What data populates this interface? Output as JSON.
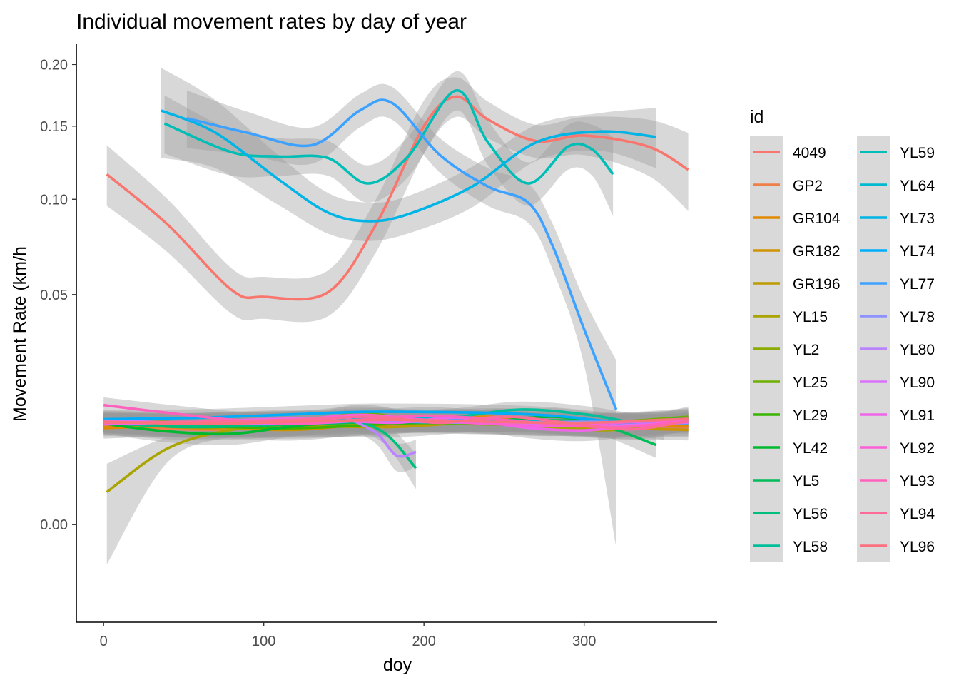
{
  "chart_data": {
    "type": "line",
    "title": "Individual movement rates by day of year",
    "xlabel": "doy",
    "ylabel": "Movement Rate (km/h",
    "xlim": [
      -17,
      383
    ],
    "ylim": [
      -0.009,
      0.218
    ],
    "y_scale": "sqrt",
    "xticks": [
      0,
      100,
      200,
      300
    ],
    "xtick_labels": [
      "0",
      "100",
      "200",
      "300"
    ],
    "yticks": [
      0.0,
      0.05,
      0.1,
      0.15,
      0.2
    ],
    "ytick_labels": [
      "0.00",
      "0.05",
      "0.10",
      "0.15",
      "0.20"
    ],
    "grid": false,
    "legend": {
      "title": "id",
      "position": "right",
      "columns": 2
    },
    "confidence_band": true,
    "series": [
      {
        "name": "4049",
        "color": "#F8766D",
        "x": [
          2,
          40,
          80,
          100,
          140,
          170,
          200,
          220,
          240,
          270,
          300,
          340,
          365
        ],
        "y": [
          0.116,
          0.085,
          0.052,
          0.049,
          0.051,
          0.085,
          0.15,
          0.173,
          0.155,
          0.139,
          0.143,
          0.135,
          0.119
        ],
        "band": [
          0.02,
          0.015,
          0.01,
          0.009,
          0.01,
          0.015,
          0.02,
          0.016,
          0.014,
          0.012,
          0.014,
          0.02,
          0.026
        ]
      },
      {
        "name": "GP2",
        "color": "#EF7F49",
        "x": [
          0,
          60,
          120,
          180,
          240,
          300,
          365
        ],
        "y": [
          0.0095,
          0.0085,
          0.0092,
          0.0098,
          0.0102,
          0.0095,
          0.009
        ]
      },
      {
        "name": "GR104",
        "color": "#E18A00",
        "x": [
          0,
          60,
          120,
          180,
          240,
          300,
          365
        ],
        "y": [
          0.0088,
          0.0093,
          0.009,
          0.0095,
          0.011,
          0.0093,
          0.0092
        ]
      },
      {
        "name": "GR182",
        "color": "#CF9400",
        "x": [
          0,
          60,
          120,
          180,
          240,
          300,
          365
        ],
        "y": [
          0.0092,
          0.009,
          0.0085,
          0.01,
          0.0105,
          0.009,
          0.0085
        ]
      },
      {
        "name": "GR196",
        "color": "#BE9C00",
        "x": [
          0,
          60,
          120,
          180,
          240,
          300,
          350
        ],
        "y": [
          0.0098,
          0.0088,
          0.0092,
          0.009,
          0.01,
          0.01,
          0.0086
        ]
      },
      {
        "name": "YL15",
        "color": "#A9A400",
        "x": [
          2,
          40,
          80,
          120,
          160,
          200,
          240,
          280,
          320,
          365
        ],
        "y": [
          0.001,
          0.0055,
          0.0085,
          0.0095,
          0.01,
          0.0102,
          0.0098,
          0.009,
          0.0085,
          0.011
        ],
        "band": [
          0.0025,
          0.0018,
          0.0012,
          0.001,
          0.001,
          0.001,
          0.001,
          0.0011,
          0.0014,
          0.0022
        ]
      },
      {
        "name": "YL2",
        "color": "#8CAB00",
        "x": [
          0,
          60,
          120,
          180,
          240,
          300,
          365
        ],
        "y": [
          0.01,
          0.009,
          0.0093,
          0.0097,
          0.0095,
          0.0092,
          0.01
        ]
      },
      {
        "name": "YL25",
        "color": "#6DB000",
        "x": [
          0,
          60,
          120,
          160,
          200,
          260,
          320,
          365
        ],
        "y": [
          0.0105,
          0.0098,
          0.0095,
          0.0118,
          0.01,
          0.0095,
          0.01,
          0.011
        ]
      },
      {
        "name": "YL29",
        "color": "#39B600",
        "x": [
          0,
          60,
          120,
          180,
          240,
          300,
          365
        ],
        "y": [
          0.0098,
          0.0092,
          0.0088,
          0.0096,
          0.0102,
          0.0094,
          0.0099
        ]
      },
      {
        "name": "YL42",
        "color": "#00B931",
        "x": [
          0,
          40,
          80,
          120,
          160,
          200,
          240,
          280,
          320,
          365
        ],
        "y": [
          0.0096,
          0.0082,
          0.0078,
          0.0092,
          0.01,
          0.0098,
          0.01,
          0.011,
          0.0098,
          0.0108
        ]
      },
      {
        "name": "YL5",
        "color": "#00BC59",
        "x": [
          0,
          60,
          120,
          180,
          240,
          300,
          345
        ],
        "y": [
          0.0098,
          0.009,
          0.0095,
          0.01,
          0.0098,
          0.01,
          0.006
        ]
      },
      {
        "name": "YL56",
        "color": "#00BE7C",
        "x": [
          0,
          50,
          100,
          150,
          175,
          195
        ],
        "y": [
          0.0098,
          0.009,
          0.0094,
          0.0102,
          0.008,
          0.003
        ]
      },
      {
        "name": "YL58",
        "color": "#00BF9A",
        "x": [
          0,
          60,
          120,
          180,
          220,
          260,
          300,
          340,
          365
        ],
        "y": [
          0.0098,
          0.0095,
          0.01,
          0.0105,
          0.011,
          0.0125,
          0.0115,
          0.0095,
          0.01
        ]
      },
      {
        "name": "YL59",
        "color": "#00BEB6",
        "x": [
          38,
          80,
          110,
          140,
          165,
          190,
          220,
          240,
          265,
          290,
          305,
          318
        ],
        "y": [
          0.152,
          0.131,
          0.128,
          0.127,
          0.11,
          0.128,
          0.178,
          0.138,
          0.11,
          0.135,
          0.133,
          0.116
        ],
        "band": [
          0.022,
          0.016,
          0.013,
          0.012,
          0.012,
          0.014,
          0.016,
          0.016,
          0.014,
          0.016,
          0.018,
          0.026
        ]
      },
      {
        "name": "YL64",
        "color": "#00BBCF",
        "x": [
          0,
          60,
          120,
          180,
          240,
          300,
          365
        ],
        "y": [
          0.01,
          0.0098,
          0.0102,
          0.0108,
          0.0104,
          0.0098,
          0.0096
        ]
      },
      {
        "name": "YL73",
        "color": "#00B5E6",
        "x": [
          36,
          70,
          110,
          140,
          165,
          190,
          230,
          270,
          310,
          345
        ],
        "y": [
          0.162,
          0.145,
          0.112,
          0.092,
          0.087,
          0.091,
          0.108,
          0.138,
          0.146,
          0.142
        ],
        "band": [
          0.035,
          0.025,
          0.016,
          0.012,
          0.011,
          0.011,
          0.013,
          0.013,
          0.014,
          0.022
        ]
      },
      {
        "name": "YL74",
        "color": "#00ADFA",
        "x": [
          0,
          60,
          120,
          160,
          200,
          240,
          280,
          320,
          350
        ],
        "y": [
          0.0105,
          0.0108,
          0.0115,
          0.012,
          0.012,
          0.0118,
          0.0112,
          0.01,
          0.0098
        ]
      },
      {
        "name": "YL77",
        "color": "#3DA1FF",
        "x": [
          52,
          90,
          130,
          160,
          180,
          210,
          240,
          265,
          280,
          300,
          320
        ],
        "y": [
          0.156,
          0.145,
          0.136,
          0.162,
          0.168,
          0.129,
          0.108,
          0.098,
          0.074,
          0.036,
          0.0125
        ],
        "band": [
          0.022,
          0.016,
          0.013,
          0.013,
          0.013,
          0.012,
          0.012,
          0.012,
          0.012,
          0.012,
          0.013
        ]
      },
      {
        "name": "YL78",
        "color": "#8E92FF",
        "x": [
          0,
          60,
          120,
          180,
          240,
          300,
          365
        ],
        "y": [
          0.0098,
          0.01,
          0.0104,
          0.01,
          0.0098,
          0.01,
          0.0098
        ]
      },
      {
        "name": "YL80",
        "color": "#BB84FF",
        "x": [
          150,
          170,
          183,
          195
        ],
        "y": [
          0.011,
          0.008,
          0.0045,
          0.005
        ]
      },
      {
        "name": "YL90",
        "color": "#DB72FB",
        "x": [
          0,
          60,
          120,
          180,
          240,
          300,
          365
        ],
        "y": [
          0.0102,
          0.0098,
          0.0096,
          0.0104,
          0.01,
          0.0092,
          0.0098
        ]
      },
      {
        "name": "YL91",
        "color": "#F066EA",
        "x": [
          0,
          60,
          120,
          180,
          220,
          260,
          300,
          340,
          365
        ],
        "y": [
          0.0095,
          0.01,
          0.0106,
          0.0098,
          0.0108,
          0.009,
          0.0084,
          0.0095,
          0.01
        ]
      },
      {
        "name": "YL92",
        "color": "#FB61D7",
        "x": [
          0,
          60,
          120,
          160,
          200,
          240,
          280,
          320,
          365
        ],
        "y": [
          0.01,
          0.0098,
          0.0104,
          0.0114,
          0.0104,
          0.0096,
          0.0092,
          0.0098,
          0.0104
        ]
      },
      {
        "name": "YL93",
        "color": "#FF62BC",
        "x": [
          0,
          40,
          80,
          120,
          160,
          200,
          240,
          280,
          320,
          365
        ],
        "y": [
          0.0135,
          0.0118,
          0.0104,
          0.0096,
          0.0104,
          0.0112,
          0.0106,
          0.0096,
          0.009,
          0.01
        ]
      },
      {
        "name": "YL94",
        "color": "#FF6A98",
        "x": [
          0,
          60,
          120,
          170,
          210,
          250,
          290,
          330,
          365
        ],
        "y": [
          0.0098,
          0.01,
          0.0104,
          0.011,
          0.0098,
          0.011,
          0.0098,
          0.0086,
          0.0102
        ]
      },
      {
        "name": "YL96",
        "color": "#FC717F",
        "x": [
          0,
          60,
          120,
          180,
          240,
          300,
          365
        ],
        "y": [
          0.01,
          0.0096,
          0.01,
          0.0104,
          0.01,
          0.0098,
          0.0106
        ]
      }
    ]
  }
}
